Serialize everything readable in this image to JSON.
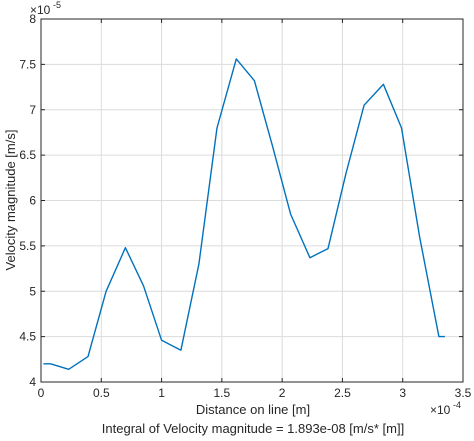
{
  "chart_data": {
    "type": "line",
    "xlabel": "Distance on line [m]",
    "ylabel": "Velocity magnitude [m/s]",
    "subtitle": "Integral of Velocity magnitude  = 1.893e-08 [m/s* [m]]",
    "x_exponent_label": "×10",
    "x_exponent": "-4",
    "y_exponent_label": "×10",
    "y_exponent": "-5",
    "xlim": [
      0,
      3.5
    ],
    "ylim": [
      4,
      8
    ],
    "x_scale_note": "x values shown in units of 1e-4 m",
    "y_scale_note": "y values shown in units of 1e-5 m/s",
    "xticks": [
      0,
      0.5,
      1,
      1.5,
      2,
      2.5,
      3,
      3.5
    ],
    "xtick_labels": [
      "0",
      "0.5",
      "1",
      "1.5",
      "2",
      "2.5",
      "3",
      "3.5"
    ],
    "yticks": [
      4,
      4.5,
      5,
      5.5,
      6,
      6.5,
      7,
      7.5,
      8
    ],
    "ytick_labels": [
      "4",
      "4.5",
      "5",
      "5.5",
      "6",
      "6.5",
      "7",
      "7.5",
      "8"
    ],
    "grid": true,
    "series": [
      {
        "color": "#0072bd",
        "x": [
          0.02,
          0.08,
          0.23,
          0.39,
          0.54,
          0.7,
          0.85,
          1.0,
          1.16,
          1.31,
          1.46,
          1.62,
          1.77,
          1.92,
          2.07,
          2.23,
          2.38,
          2.53,
          2.68,
          2.84,
          2.99,
          3.14,
          3.3,
          3.35
        ],
        "y": [
          4.2,
          4.2,
          4.14,
          4.28,
          5.0,
          5.48,
          5.06,
          4.46,
          4.35,
          5.3,
          6.8,
          7.56,
          7.32,
          6.6,
          5.85,
          5.37,
          5.47,
          6.3,
          7.05,
          7.28,
          6.8,
          5.6,
          4.5,
          4.5
        ]
      }
    ]
  }
}
